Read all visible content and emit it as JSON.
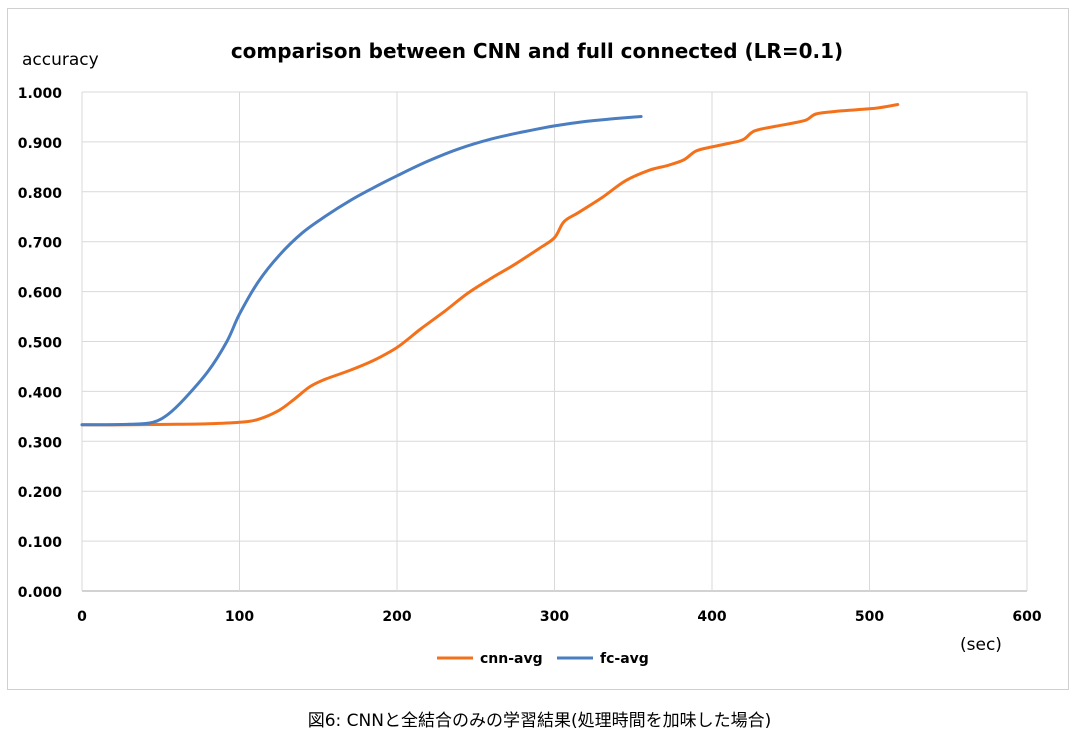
{
  "chart_data": {
    "type": "line",
    "title": "comparison between CNN and full connected (LR=0.1)",
    "ylabel": "accuracy",
    "xlabel": "(sec)",
    "xlim": [
      0,
      600
    ],
    "ylim": [
      0,
      1
    ],
    "x_ticks": [
      "0",
      "100",
      "200",
      "300",
      "400",
      "500",
      "600"
    ],
    "y_ticks": [
      "0.000",
      "0.100",
      "0.200",
      "0.300",
      "0.400",
      "0.500",
      "0.600",
      "0.700",
      "0.800",
      "0.900",
      "1.000"
    ],
    "grid": true,
    "legend_position": "bottom",
    "series": [
      {
        "name": "cnn-avg",
        "color": "#f4711c",
        "points": [
          [
            0,
            0.333
          ],
          [
            30,
            0.333
          ],
          [
            60,
            0.334
          ],
          [
            80,
            0.335
          ],
          [
            100,
            0.338
          ],
          [
            112,
            0.344
          ],
          [
            125,
            0.362
          ],
          [
            135,
            0.385
          ],
          [
            145,
            0.41
          ],
          [
            155,
            0.425
          ],
          [
            170,
            0.442
          ],
          [
            185,
            0.462
          ],
          [
            200,
            0.488
          ],
          [
            215,
            0.525
          ],
          [
            230,
            0.56
          ],
          [
            245,
            0.597
          ],
          [
            260,
            0.627
          ],
          [
            275,
            0.655
          ],
          [
            290,
            0.686
          ],
          [
            300,
            0.708
          ],
          [
            306,
            0.74
          ],
          [
            315,
            0.758
          ],
          [
            330,
            0.788
          ],
          [
            345,
            0.822
          ],
          [
            360,
            0.843
          ],
          [
            372,
            0.853
          ],
          [
            382,
            0.864
          ],
          [
            390,
            0.882
          ],
          [
            400,
            0.89
          ],
          [
            412,
            0.898
          ],
          [
            420,
            0.905
          ],
          [
            427,
            0.922
          ],
          [
            440,
            0.931
          ],
          [
            452,
            0.938
          ],
          [
            460,
            0.944
          ],
          [
            466,
            0.956
          ],
          [
            478,
            0.961
          ],
          [
            490,
            0.964
          ],
          [
            505,
            0.968
          ],
          [
            518,
            0.975
          ]
        ]
      },
      {
        "name": "fc-avg",
        "color": "#4a7ec0",
        "points": [
          [
            0,
            0.333
          ],
          [
            30,
            0.334
          ],
          [
            45,
            0.338
          ],
          [
            55,
            0.355
          ],
          [
            65,
            0.385
          ],
          [
            80,
            0.44
          ],
          [
            92,
            0.5
          ],
          [
            100,
            0.555
          ],
          [
            112,
            0.62
          ],
          [
            125,
            0.672
          ],
          [
            140,
            0.718
          ],
          [
            155,
            0.752
          ],
          [
            170,
            0.782
          ],
          [
            185,
            0.808
          ],
          [
            200,
            0.832
          ],
          [
            220,
            0.862
          ],
          [
            240,
            0.887
          ],
          [
            260,
            0.906
          ],
          [
            280,
            0.92
          ],
          [
            300,
            0.932
          ],
          [
            320,
            0.941
          ],
          [
            340,
            0.947
          ],
          [
            355,
            0.951
          ]
        ]
      }
    ]
  },
  "caption": "図6: CNNと全結合のみの学習結果(処理時間を加味した場合)"
}
